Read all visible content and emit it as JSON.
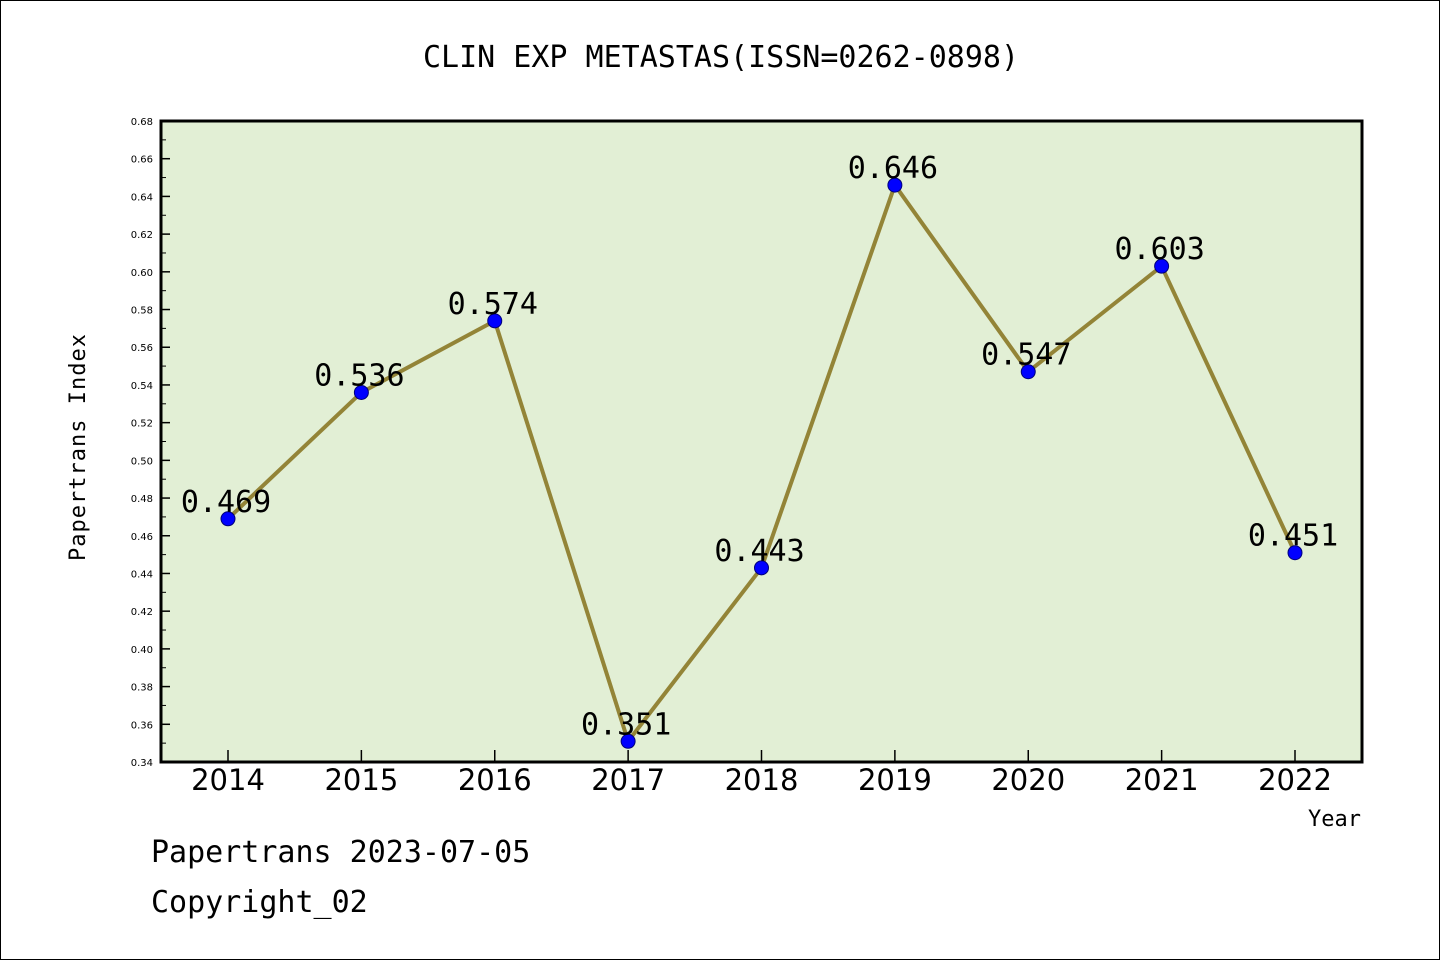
{
  "chart_data": {
    "type": "line",
    "title": "CLIN EXP METASTAS(ISSN=0262-0898)",
    "xlabel": "Year",
    "ylabel": "Papertrans Index",
    "categories": [
      "2014",
      "2015",
      "2016",
      "2017",
      "2018",
      "2019",
      "2020",
      "2021",
      "2022"
    ],
    "values": [
      0.469,
      0.536,
      0.574,
      0.351,
      0.443,
      0.646,
      0.547,
      0.603,
      0.451
    ],
    "data_labels": [
      "0.469",
      "0.536",
      "0.574",
      "0.351",
      "0.443",
      "0.646",
      "0.547",
      "0.603",
      "0.451"
    ],
    "ylim": [
      0.34,
      0.68
    ],
    "yticks": [
      "0.34",
      "0.36",
      "0.38",
      "0.40",
      "0.42",
      "0.44",
      "0.46",
      "0.48",
      "0.50",
      "0.52",
      "0.54",
      "0.56",
      "0.58",
      "0.60",
      "0.62",
      "0.64",
      "0.66",
      "0.68"
    ],
    "grid": false,
    "colors": {
      "plot_background": "#e2efd5",
      "line": "#938437",
      "marker": "#0000ff",
      "marker_edge": "#00007a"
    }
  },
  "footer": {
    "line1": "Papertrans 2023-07-05",
    "line2": "Copyright_02"
  }
}
